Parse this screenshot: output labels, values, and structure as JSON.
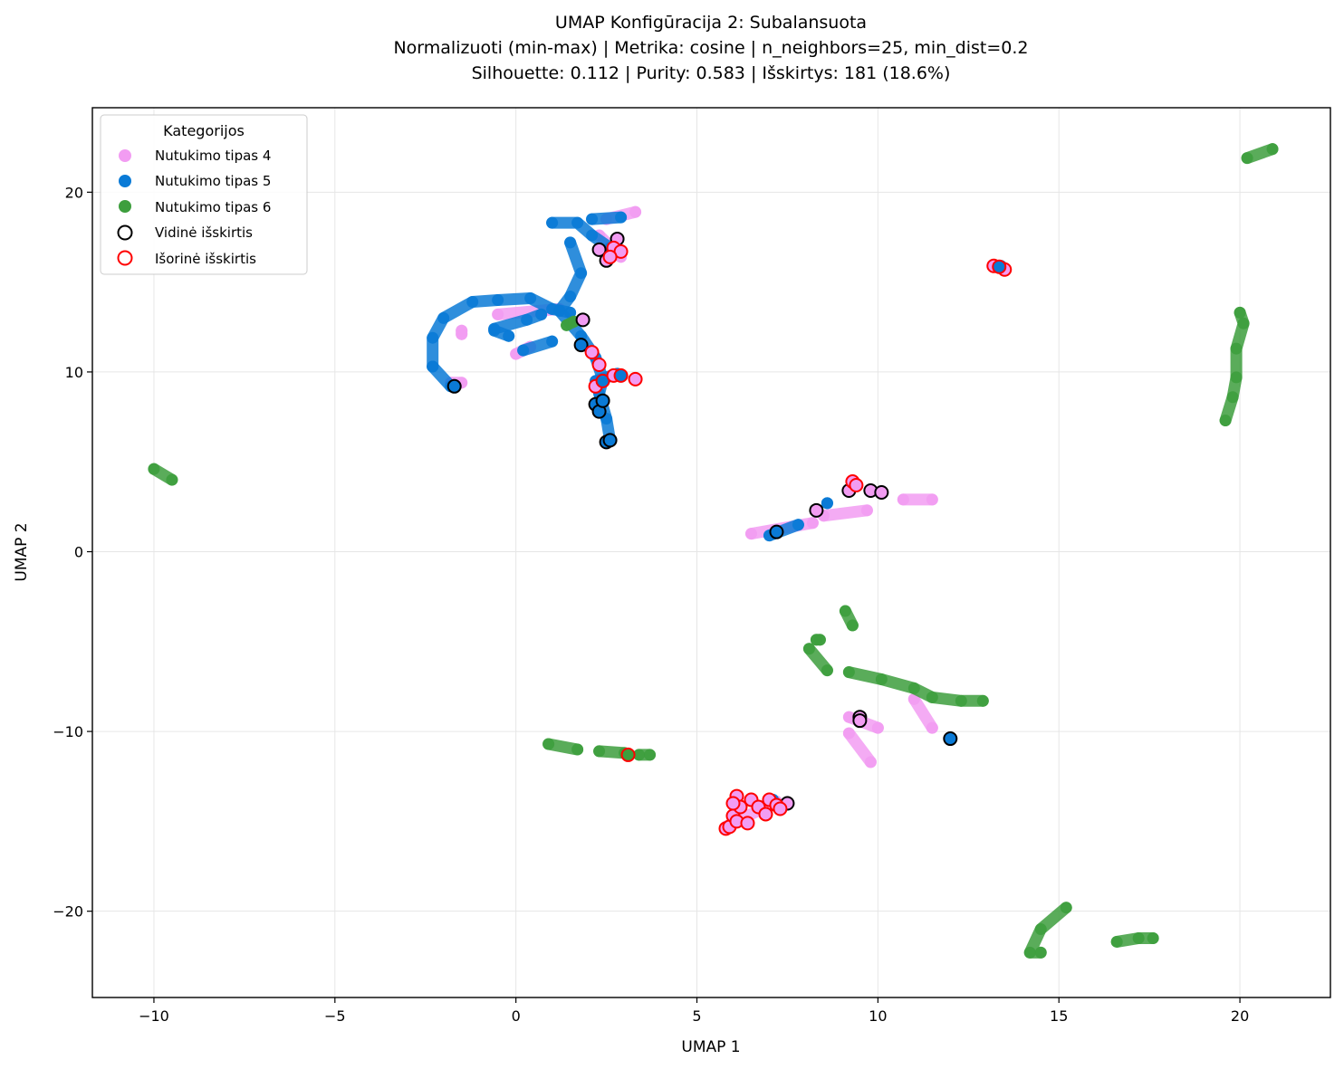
{
  "chart_data": {
    "type": "scatter",
    "title_lines": [
      "UMAP Konfigūracija 2: Subalansuota",
      "Normalizuoti (min-max) | Metrika: cosine | n_neighbors=25, min_dist=0.2",
      "Silhouette: 0.112 | Purity: 0.583 | Išskirtys: 181 (18.6%)"
    ],
    "xlabel": "UMAP 1",
    "ylabel": "UMAP 2",
    "xlim": [
      -11.7,
      22.5
    ],
    "ylim": [
      -24.8,
      24.7
    ],
    "xticks": [
      -10,
      -5,
      0,
      5,
      10,
      15,
      20
    ],
    "yticks": [
      -20,
      -10,
      0,
      10,
      20
    ],
    "xtick_labels": [
      "−10",
      "−5",
      "0",
      "5",
      "10",
      "15",
      "20"
    ],
    "ytick_labels": [
      "−20",
      "−10",
      "0",
      "10",
      "20"
    ],
    "grid": true,
    "legend": {
      "title": "Kategorijos",
      "position": "top-left",
      "entries": [
        {
          "label": "Nutukimo tipas 4",
          "kind": "series",
          "color": "#f29cf2"
        },
        {
          "label": "Nutukimo tipas 5",
          "kind": "series",
          "color": "#0a7ad6"
        },
        {
          "label": "Nutukimo tipas 6",
          "kind": "series",
          "color": "#3d9e3d"
        },
        {
          "label": "Vidinė išskirtis",
          "kind": "outline",
          "color": "#000000"
        },
        {
          "label": "Išorinė išskirtis",
          "kind": "outline",
          "color": "#ff0000"
        }
      ]
    },
    "series": [
      {
        "name": "Nutukimo tipas 4",
        "color": "#f29cf2",
        "strokes": [
          [
            [
              2.5,
              18.5
            ],
            [
              3.3,
              18.9
            ]
          ],
          [
            [
              2.3,
              17.6
            ],
            [
              2.9,
              16.4
            ]
          ],
          [
            [
              -1.5,
              12.1
            ],
            [
              -1.5,
              12.3
            ]
          ],
          [
            [
              -0.5,
              13.2
            ],
            [
              1.2,
              13.5
            ]
          ],
          [
            [
              0,
              11.0
            ],
            [
              0.4,
              11.4
            ]
          ],
          [
            [
              -1.8,
              9.4
            ],
            [
              -1.5,
              9.4
            ]
          ],
          [
            [
              6.5,
              1.0
            ],
            [
              8.2,
              1.6
            ]
          ],
          [
            [
              8.5,
              2.0
            ],
            [
              9.7,
              2.3
            ]
          ],
          [
            [
              10.7,
              2.9
            ],
            [
              11.5,
              2.9
            ]
          ],
          [
            [
              9.2,
              -9.2
            ],
            [
              10.0,
              -9.8
            ]
          ],
          [
            [
              9.2,
              -10.1
            ],
            [
              9.8,
              -11.7
            ]
          ],
          [
            [
              11.0,
              -8.2
            ],
            [
              11.5,
              -9.8
            ]
          ],
          [
            [
              5.8,
              -15.3
            ],
            [
              7.2,
              -13.9
            ]
          ]
        ]
      },
      {
        "name": "Nutukimo tipas 5",
        "color": "#0a7ad6",
        "strokes": [
          [
            [
              1.0,
              18.3
            ],
            [
              1.7,
              18.3
            ],
            [
              2.1,
              17.6
            ],
            [
              2.6,
              16.9
            ]
          ],
          [
            [
              1.5,
              17.2
            ],
            [
              1.8,
              15.5
            ],
            [
              1.5,
              14.2
            ],
            [
              1.2,
              13.4
            ],
            [
              1.8,
              12.0
            ],
            [
              2.2,
              10.8
            ],
            [
              2.4,
              9.6
            ],
            [
              2.3,
              8.8
            ],
            [
              2.5,
              7.4
            ],
            [
              2.6,
              6.2
            ]
          ],
          [
            [
              2.1,
              18.5
            ],
            [
              2.9,
              18.6
            ]
          ],
          [
            [
              -2.3,
              10.3
            ],
            [
              -2.3,
              11.9
            ],
            [
              -2.0,
              13.0
            ],
            [
              -1.2,
              13.9
            ],
            [
              -0.5,
              14.0
            ],
            [
              0.4,
              14.1
            ],
            [
              1.0,
              13.5
            ],
            [
              1.5,
              13.3
            ]
          ],
          [
            [
              -0.6,
              12.4
            ],
            [
              0.3,
              12.9
            ],
            [
              0.7,
              13.2
            ]
          ],
          [
            [
              -2.3,
              10.3
            ],
            [
              -1.8,
              9.2
            ]
          ],
          [
            [
              -0.6,
              12.3
            ],
            [
              -0.2,
              12.0
            ]
          ],
          [
            [
              0.2,
              11.2
            ],
            [
              1.0,
              11.7
            ]
          ],
          [
            [
              2.8,
              9.9
            ],
            [
              2.2,
              9.5
            ]
          ],
          [
            [
              7.0,
              0.9
            ],
            [
              7.8,
              1.5
            ]
          ],
          [
            [
              8.6,
              2.7
            ],
            [
              8.6,
              2.7
            ]
          ],
          [
            [
              13.3,
              15.9
            ],
            [
              13.4,
              15.9
            ]
          ],
          [
            [
              12.0,
              -10.4
            ],
            [
              12.0,
              -10.4
            ]
          ],
          [
            [
              7.1,
              -13.8
            ],
            [
              7.1,
              -13.8
            ]
          ]
        ]
      },
      {
        "name": "Nutukimo tipas 6",
        "color": "#3d9e3d",
        "strokes": [
          [
            [
              20.2,
              21.9
            ],
            [
              20.9,
              22.4
            ]
          ],
          [
            [
              20.0,
              13.3
            ],
            [
              20.1,
              12.7
            ],
            [
              19.9,
              11.3
            ],
            [
              19.9,
              9.7
            ],
            [
              19.8,
              8.6
            ],
            [
              19.6,
              7.3
            ]
          ],
          [
            [
              -10.0,
              4.6
            ],
            [
              -9.5,
              4.0
            ]
          ],
          [
            [
              1.4,
              12.6
            ],
            [
              1.6,
              12.8
            ]
          ],
          [
            [
              8.1,
              -5.4
            ],
            [
              8.6,
              -6.6
            ]
          ],
          [
            [
              8.3,
              -4.9
            ],
            [
              8.4,
              -4.9
            ]
          ],
          [
            [
              9.1,
              -3.3
            ],
            [
              9.3,
              -4.1
            ]
          ],
          [
            [
              9.2,
              -6.7
            ],
            [
              10.1,
              -7.1
            ],
            [
              11.0,
              -7.6
            ],
            [
              11.5,
              -8.1
            ],
            [
              12.3,
              -8.3
            ],
            [
              12.9,
              -8.3
            ]
          ],
          [
            [
              0.9,
              -10.7
            ],
            [
              1.7,
              -11.0
            ]
          ],
          [
            [
              2.3,
              -11.1
            ],
            [
              3.0,
              -11.2
            ]
          ],
          [
            [
              3.4,
              -11.3
            ],
            [
              3.7,
              -11.3
            ]
          ],
          [
            [
              15.2,
              -19.8
            ],
            [
              14.5,
              -21.0
            ],
            [
              14.2,
              -22.3
            ],
            [
              14.5,
              -22.3
            ]
          ],
          [
            [
              16.6,
              -21.7
            ],
            [
              17.2,
              -21.5
            ],
            [
              17.6,
              -21.5
            ]
          ]
        ]
      }
    ],
    "outliers": [
      {
        "name": "Vidinė išskirtis",
        "color": "#000000",
        "points": [
          {
            "x": 2.3,
            "y": 16.8,
            "fill": "#f29cf2"
          },
          {
            "x": 2.5,
            "y": 16.2,
            "fill": "#f29cf2"
          },
          {
            "x": 2.8,
            "y": 17.4,
            "fill": "#f29cf2"
          },
          {
            "x": 1.85,
            "y": 12.9,
            "fill": "#f29cf2"
          },
          {
            "x": 1.8,
            "y": 11.5,
            "fill": "#0a7ad6"
          },
          {
            "x": 2.2,
            "y": 8.2,
            "fill": "#0a7ad6"
          },
          {
            "x": 2.3,
            "y": 7.8,
            "fill": "#0a7ad6"
          },
          {
            "x": 2.4,
            "y": 8.4,
            "fill": "#0a7ad6"
          },
          {
            "x": 2.5,
            "y": 6.1,
            "fill": "#0a7ad6"
          },
          {
            "x": 2.6,
            "y": 6.2,
            "fill": "#0a7ad6"
          },
          {
            "x": -1.7,
            "y": 9.2,
            "fill": "#0a7ad6"
          },
          {
            "x": 8.3,
            "y": 2.3,
            "fill": "#f29cf2"
          },
          {
            "x": 7.2,
            "y": 1.1,
            "fill": "#0a7ad6"
          },
          {
            "x": 9.2,
            "y": 3.4,
            "fill": "#f29cf2"
          },
          {
            "x": 9.8,
            "y": 3.4,
            "fill": "#f29cf2"
          },
          {
            "x": 10.1,
            "y": 3.3,
            "fill": "#f29cf2"
          },
          {
            "x": 9.5,
            "y": -9.2,
            "fill": "#f29cf2"
          },
          {
            "x": 9.5,
            "y": -9.4,
            "fill": "#f29cf2"
          },
          {
            "x": 12.0,
            "y": -10.4,
            "fill": "#0a7ad6"
          },
          {
            "x": 7.5,
            "y": -14.0,
            "fill": "#f29cf2"
          }
        ]
      },
      {
        "name": "Išorinė išskirtis",
        "color": "#ff0000",
        "points": [
          {
            "x": 2.7,
            "y": 16.9,
            "fill": "#f29cf2"
          },
          {
            "x": 2.9,
            "y": 16.7,
            "fill": "#f29cf2"
          },
          {
            "x": 2.6,
            "y": 16.4,
            "fill": "#f29cf2"
          },
          {
            "x": 2.1,
            "y": 11.1,
            "fill": "#f29cf2"
          },
          {
            "x": 2.3,
            "y": 10.4,
            "fill": "#f29cf2"
          },
          {
            "x": 2.2,
            "y": 9.2,
            "fill": "#f29cf2"
          },
          {
            "x": 2.4,
            "y": 9.5,
            "fill": "#0a7ad6"
          },
          {
            "x": 2.7,
            "y": 9.8,
            "fill": "#f29cf2"
          },
          {
            "x": 2.9,
            "y": 9.8,
            "fill": "#0a7ad6"
          },
          {
            "x": 3.3,
            "y": 9.6,
            "fill": "#f29cf2"
          },
          {
            "x": 9.3,
            "y": 3.9,
            "fill": "#f29cf2"
          },
          {
            "x": 9.4,
            "y": 3.7,
            "fill": "#f29cf2"
          },
          {
            "x": 13.2,
            "y": 15.9,
            "fill": "#f29cf2"
          },
          {
            "x": 13.5,
            "y": 15.7,
            "fill": "#f29cf2"
          },
          {
            "x": 13.35,
            "y": 15.85,
            "fill": "#0a7ad6"
          },
          {
            "x": 3.1,
            "y": -11.3,
            "fill": "#3d9e3d"
          },
          {
            "x": 5.8,
            "y": -15.4,
            "fill": "#f29cf2"
          },
          {
            "x": 5.9,
            "y": -15.3,
            "fill": "#f29cf2"
          },
          {
            "x": 6.0,
            "y": -14.7,
            "fill": "#f29cf2"
          },
          {
            "x": 6.1,
            "y": -13.6,
            "fill": "#f29cf2"
          },
          {
            "x": 6.2,
            "y": -14.2,
            "fill": "#f29cf2"
          },
          {
            "x": 6.1,
            "y": -15.0,
            "fill": "#f29cf2"
          },
          {
            "x": 6.4,
            "y": -15.1,
            "fill": "#f29cf2"
          },
          {
            "x": 6.5,
            "y": -13.8,
            "fill": "#f29cf2"
          },
          {
            "x": 6.7,
            "y": -14.2,
            "fill": "#f29cf2"
          },
          {
            "x": 6.9,
            "y": -14.6,
            "fill": "#f29cf2"
          },
          {
            "x": 7.0,
            "y": -13.8,
            "fill": "#f29cf2"
          },
          {
            "x": 7.2,
            "y": -14.1,
            "fill": "#f29cf2"
          },
          {
            "x": 7.3,
            "y": -14.3,
            "fill": "#f29cf2"
          },
          {
            "x": 6.0,
            "y": -14.0,
            "fill": "#f29cf2"
          }
        ]
      }
    ]
  }
}
